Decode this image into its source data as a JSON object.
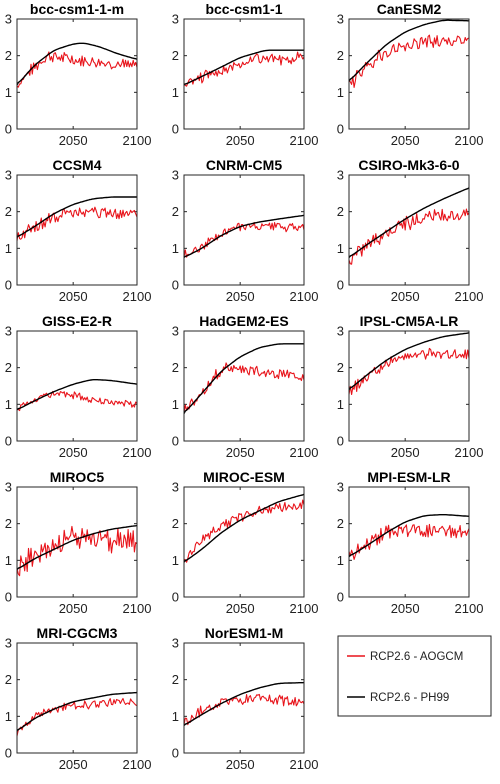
{
  "colors": {
    "aogcm": "#e8141b",
    "ph99": "#000000",
    "axis": "#262626"
  },
  "legend": {
    "entries": [
      "RCP2.6 - AOGCM",
      "RCP2.6 - PH99"
    ]
  },
  "chart_data": [
    {
      "type": "line",
      "title": "bcc-csm1-1-m",
      "xlim": [
        2006,
        2100
      ],
      "ylim": [
        0,
        3
      ],
      "xticks": [
        2050,
        2100
      ],
      "yticks": [
        0,
        1,
        2,
        3
      ],
      "ph99": {
        "x": [
          2006,
          2020,
          2035,
          2050,
          2058,
          2070,
          2085,
          2100
        ],
        "y": [
          1.2,
          1.75,
          2.15,
          2.32,
          2.35,
          2.25,
          2.05,
          1.9
        ]
      },
      "aogcm": {
        "mean_x": [
          2006,
          2020,
          2030,
          2040,
          2060,
          2080,
          2100
        ],
        "mean_y": [
          1.2,
          1.7,
          2.0,
          1.95,
          1.85,
          1.8,
          1.7
        ],
        "amp": 0.14
      }
    },
    {
      "type": "line",
      "title": "bcc-csm1-1",
      "xlim": [
        2006,
        2100
      ],
      "ylim": [
        0,
        3
      ],
      "xticks": [
        2050,
        2100
      ],
      "yticks": [
        0,
        1,
        2,
        3
      ],
      "ph99": {
        "x": [
          2006,
          2030,
          2050,
          2070,
          2080,
          2100
        ],
        "y": [
          1.2,
          1.6,
          1.95,
          2.15,
          2.15,
          2.15
        ]
      },
      "aogcm": {
        "mean_x": [
          2006,
          2030,
          2060,
          2080,
          2100
        ],
        "mean_y": [
          1.2,
          1.55,
          1.9,
          1.9,
          1.95
        ],
        "amp": 0.13
      }
    },
    {
      "type": "line",
      "title": "CanESM2",
      "xlim": [
        2006,
        2100
      ],
      "ylim": [
        0,
        3
      ],
      "xticks": [
        2050,
        2100
      ],
      "yticks": [
        0,
        1,
        2,
        3
      ],
      "ph99": {
        "x": [
          2006,
          2020,
          2035,
          2050,
          2065,
          2080,
          2100
        ],
        "y": [
          1.3,
          1.8,
          2.3,
          2.65,
          2.85,
          2.97,
          2.95
        ]
      },
      "aogcm": {
        "mean_x": [
          2006,
          2020,
          2035,
          2050,
          2070,
          2100
        ],
        "mean_y": [
          1.2,
          1.7,
          2.1,
          2.3,
          2.4,
          2.35
        ],
        "amp": 0.18
      }
    },
    {
      "type": "line",
      "title": "CCSM4",
      "xlim": [
        2006,
        2100
      ],
      "ylim": [
        0,
        3
      ],
      "xticks": [
        2050,
        2100
      ],
      "yticks": [
        0,
        1,
        2,
        3
      ],
      "ph99": {
        "x": [
          2006,
          2020,
          2035,
          2050,
          2065,
          2080,
          2100
        ],
        "y": [
          1.3,
          1.6,
          1.95,
          2.2,
          2.35,
          2.4,
          2.4
        ]
      },
      "aogcm": {
        "mean_x": [
          2006,
          2020,
          2035,
          2050,
          2080,
          2100
        ],
        "mean_y": [
          1.3,
          1.55,
          1.85,
          2.0,
          1.95,
          1.95
        ],
        "amp": 0.14
      }
    },
    {
      "type": "line",
      "title": "CNRM-CM5",
      "xlim": [
        2006,
        2100
      ],
      "ylim": [
        0,
        3
      ],
      "xticks": [
        2050,
        2100
      ],
      "yticks": [
        0,
        1,
        2,
        3
      ],
      "ph99": {
        "x": [
          2006,
          2020,
          2035,
          2050,
          2065,
          2080,
          2100
        ],
        "y": [
          0.75,
          1.0,
          1.35,
          1.6,
          1.72,
          1.8,
          1.9
        ]
      },
      "aogcm": {
        "mean_x": [
          2006,
          2020,
          2035,
          2050,
          2080,
          2100
        ],
        "mean_y": [
          0.8,
          1.05,
          1.4,
          1.6,
          1.6,
          1.55
        ],
        "amp": 0.11
      }
    },
    {
      "type": "line",
      "title": "CSIRO-Mk3-6-0",
      "xlim": [
        2006,
        2100
      ],
      "ylim": [
        0,
        3
      ],
      "xticks": [
        2050,
        2100
      ],
      "yticks": [
        0,
        1,
        2,
        3
      ],
      "ph99": {
        "x": [
          2006,
          2020,
          2035,
          2050,
          2065,
          2080,
          2100
        ],
        "y": [
          0.75,
          1.1,
          1.45,
          1.8,
          2.1,
          2.35,
          2.65
        ]
      },
      "aogcm": {
        "mean_x": [
          2006,
          2020,
          2035,
          2050,
          2070,
          2100
        ],
        "mean_y": [
          0.65,
          1.1,
          1.45,
          1.7,
          1.85,
          1.95
        ],
        "amp": 0.17
      }
    },
    {
      "type": "line",
      "title": "GISS-E2-R",
      "xlim": [
        2006,
        2100
      ],
      "ylim": [
        0,
        3
      ],
      "xticks": [
        2050,
        2100
      ],
      "yticks": [
        0,
        1,
        2,
        3
      ],
      "ph99": {
        "x": [
          2006,
          2020,
          2035,
          2050,
          2065,
          2080,
          2100
        ],
        "y": [
          0.85,
          1.1,
          1.35,
          1.55,
          1.68,
          1.65,
          1.55
        ]
      },
      "aogcm": {
        "mean_x": [
          2006,
          2020,
          2035,
          2050,
          2070,
          2100
        ],
        "mean_y": [
          0.85,
          1.1,
          1.3,
          1.25,
          1.1,
          1.0
        ],
        "amp": 0.08
      }
    },
    {
      "type": "line",
      "title": "HadGEM2-ES",
      "xlim": [
        2006,
        2100
      ],
      "ylim": [
        0,
        3
      ],
      "xticks": [
        2050,
        2100
      ],
      "yticks": [
        0,
        1,
        2,
        3
      ],
      "ph99": {
        "x": [
          2006,
          2020,
          2035,
          2050,
          2065,
          2080,
          2100
        ],
        "y": [
          0.75,
          1.3,
          1.9,
          2.3,
          2.55,
          2.65,
          2.65
        ]
      },
      "aogcm": {
        "mean_x": [
          2006,
          2020,
          2030,
          2040,
          2050,
          2070,
          2100
        ],
        "mean_y": [
          0.9,
          1.3,
          1.75,
          2.0,
          1.95,
          1.85,
          1.8
        ],
        "amp": 0.14
      }
    },
    {
      "type": "line",
      "title": "IPSL-CM5A-LR",
      "xlim": [
        2006,
        2100
      ],
      "ylim": [
        0,
        3
      ],
      "xticks": [
        2050,
        2100
      ],
      "yticks": [
        0,
        1,
        2,
        3
      ],
      "ph99": {
        "x": [
          2006,
          2020,
          2035,
          2050,
          2065,
          2080,
          2100
        ],
        "y": [
          1.4,
          1.8,
          2.2,
          2.5,
          2.7,
          2.85,
          2.95
        ]
      },
      "aogcm": {
        "mean_x": [
          2006,
          2020,
          2035,
          2050,
          2070,
          2100
        ],
        "mean_y": [
          1.35,
          1.75,
          2.1,
          2.3,
          2.4,
          2.35
        ],
        "amp": 0.13
      }
    },
    {
      "type": "line",
      "title": "MIROC5",
      "xlim": [
        2006,
        2100
      ],
      "ylim": [
        0,
        3
      ],
      "xticks": [
        2050,
        2100
      ],
      "yticks": [
        0,
        1,
        2,
        3
      ],
      "ph99": {
        "x": [
          2006,
          2020,
          2035,
          2050,
          2065,
          2080,
          2100
        ],
        "y": [
          0.75,
          1.05,
          1.3,
          1.55,
          1.72,
          1.85,
          1.95
        ]
      },
      "aogcm": {
        "mean_x": [
          2006,
          2020,
          2035,
          2050,
          2070,
          2100
        ],
        "mean_y": [
          0.8,
          1.15,
          1.4,
          1.55,
          1.6,
          1.5
        ],
        "amp": 0.3
      }
    },
    {
      "type": "line",
      "title": "MIROC-ESM",
      "xlim": [
        2006,
        2100
      ],
      "ylim": [
        0,
        3
      ],
      "xticks": [
        2050,
        2100
      ],
      "yticks": [
        0,
        1,
        2,
        3
      ],
      "ph99": {
        "x": [
          2006,
          2020,
          2035,
          2050,
          2065,
          2080,
          2100
        ],
        "y": [
          0.95,
          1.3,
          1.75,
          2.1,
          2.35,
          2.6,
          2.8
        ]
      },
      "aogcm": {
        "mean_x": [
          2006,
          2020,
          2035,
          2050,
          2070,
          2100
        ],
        "mean_y": [
          1.0,
          1.55,
          1.95,
          2.2,
          2.4,
          2.5
        ],
        "amp": 0.12
      }
    },
    {
      "type": "line",
      "title": "MPI-ESM-LR",
      "xlim": [
        2006,
        2100
      ],
      "ylim": [
        0,
        3
      ],
      "xticks": [
        2050,
        2100
      ],
      "yticks": [
        0,
        1,
        2,
        3
      ],
      "ph99": {
        "x": [
          2006,
          2020,
          2035,
          2050,
          2065,
          2080,
          2100
        ],
        "y": [
          1.1,
          1.4,
          1.75,
          2.05,
          2.22,
          2.25,
          2.2
        ]
      },
      "aogcm": {
        "mean_x": [
          2006,
          2020,
          2035,
          2050,
          2070,
          2100
        ],
        "mean_y": [
          1.1,
          1.45,
          1.75,
          1.85,
          1.8,
          1.75
        ],
        "amp": 0.17
      }
    },
    {
      "type": "line",
      "title": "MRI-CGCM3",
      "xlim": [
        2006,
        2100
      ],
      "ylim": [
        0,
        3
      ],
      "xticks": [
        2050,
        2100
      ],
      "yticks": [
        0,
        1,
        2,
        3
      ],
      "ph99": {
        "x": [
          2006,
          2020,
          2035,
          2050,
          2065,
          2080,
          2100
        ],
        "y": [
          0.6,
          0.95,
          1.2,
          1.4,
          1.5,
          1.6,
          1.65
        ]
      },
      "aogcm": {
        "mean_x": [
          2006,
          2020,
          2035,
          2050,
          2070,
          2100
        ],
        "mean_y": [
          0.55,
          1.0,
          1.2,
          1.3,
          1.35,
          1.4
        ],
        "amp": 0.1
      }
    },
    {
      "type": "line",
      "title": "NorESM1-M",
      "xlim": [
        2006,
        2100
      ],
      "ylim": [
        0,
        3
      ],
      "xticks": [
        2050,
        2100
      ],
      "yticks": [
        0,
        1,
        2,
        3
      ],
      "ph99": {
        "x": [
          2006,
          2020,
          2035,
          2050,
          2065,
          2080,
          2100
        ],
        "y": [
          0.75,
          1.05,
          1.35,
          1.6,
          1.78,
          1.9,
          1.92
        ]
      },
      "aogcm": {
        "mean_x": [
          2006,
          2020,
          2035,
          2050,
          2070,
          2100
        ],
        "mean_y": [
          0.8,
          1.15,
          1.4,
          1.45,
          1.45,
          1.4
        ],
        "amp": 0.13
      }
    }
  ]
}
